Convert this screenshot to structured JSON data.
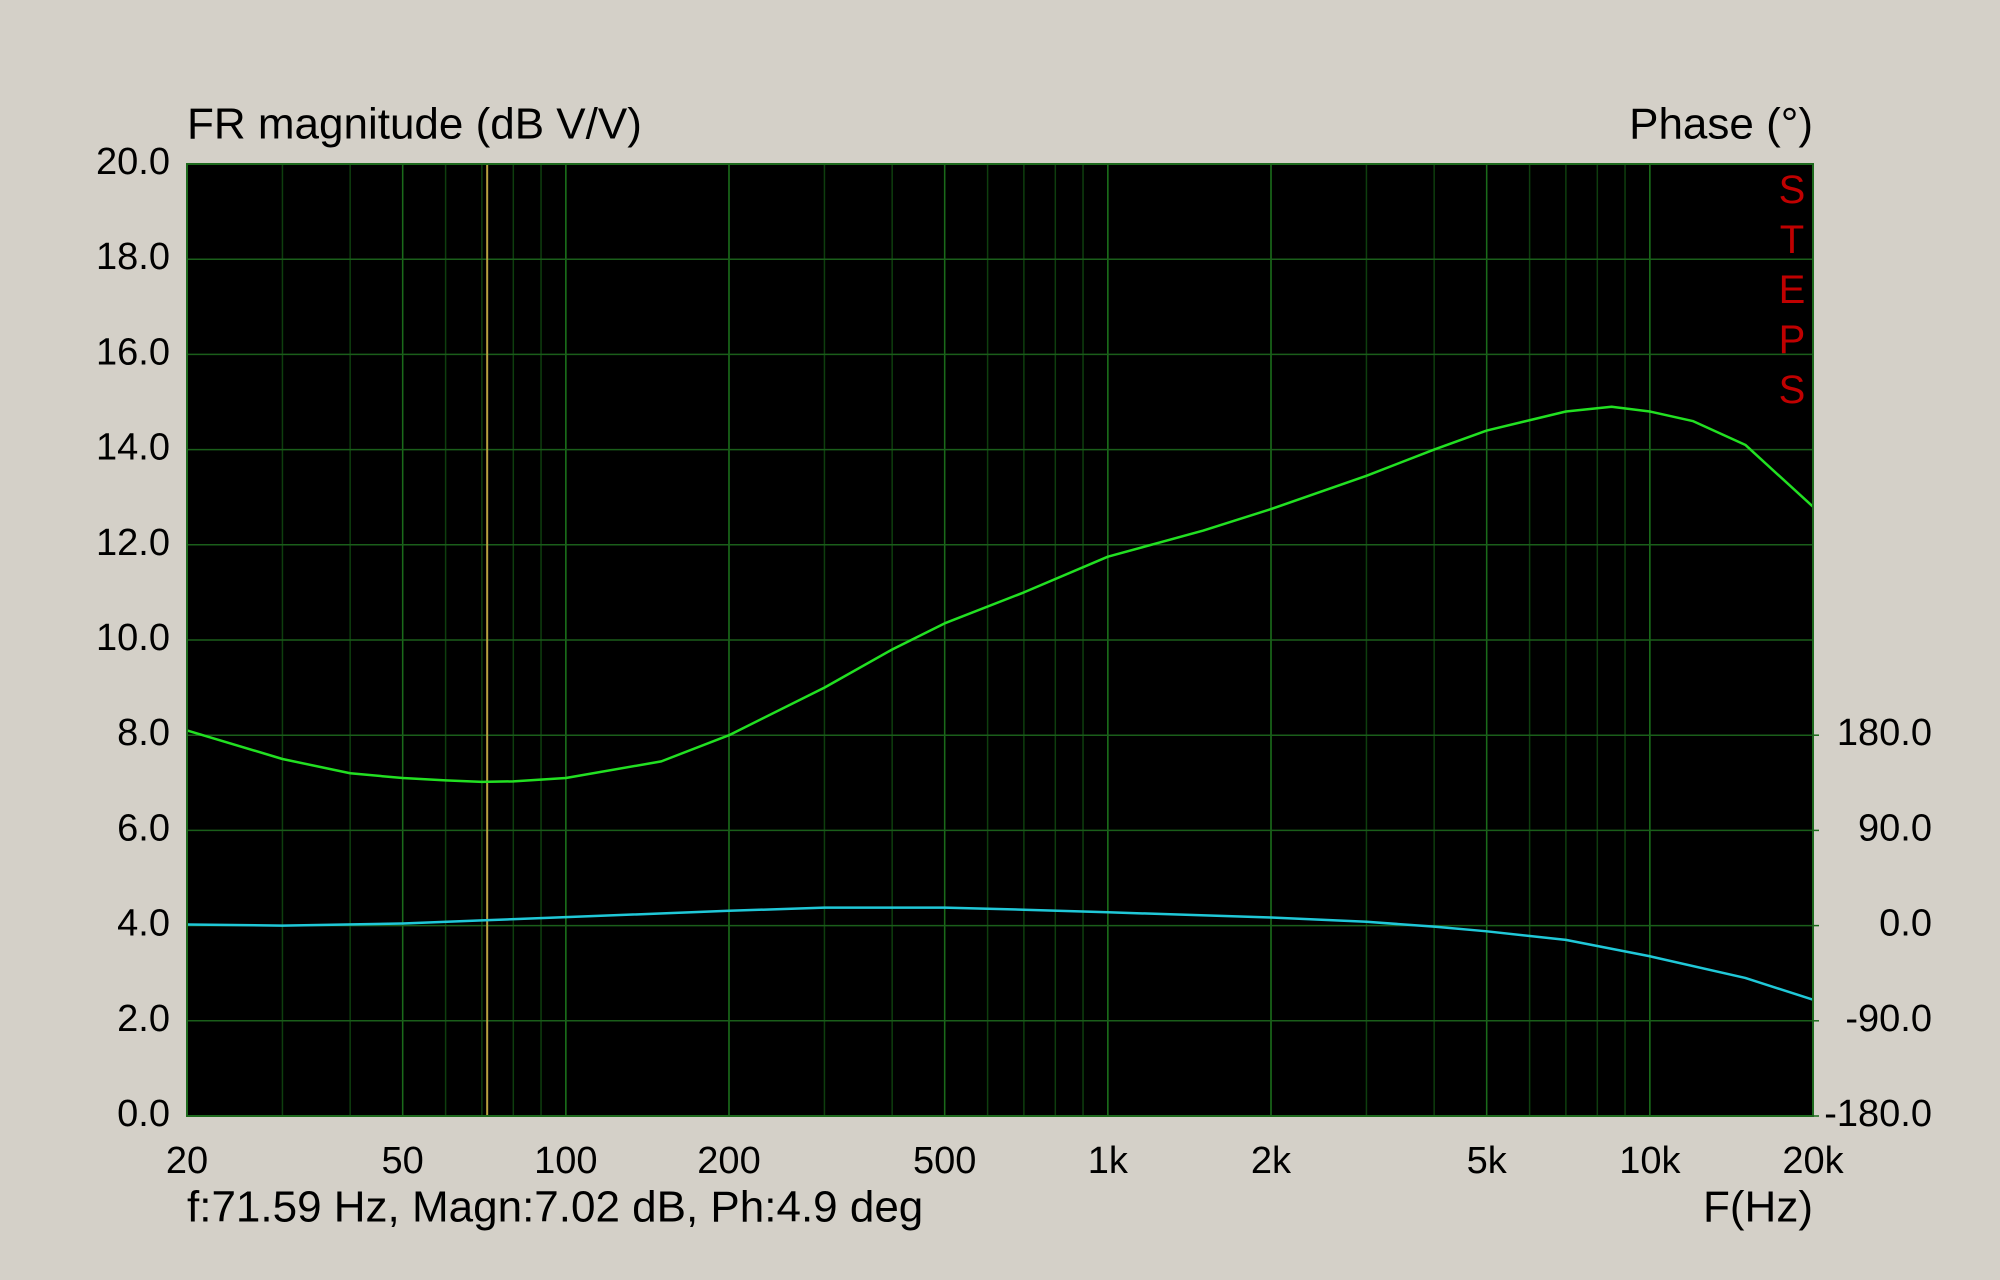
{
  "chart_data": {
    "type": "line",
    "title": "FR magnitude (dB V/V)",
    "y2_title": "Phase (°)",
    "xlabel": "F(Hz)",
    "annotation": "STEPS",
    "log_x": true,
    "grid": true,
    "xlim": [
      20,
      20000
    ],
    "xticks": [
      20,
      50,
      100,
      200,
      500,
      {
        "value": 1000,
        "label": "1k"
      },
      {
        "value": 2000,
        "label": "2k"
      },
      {
        "value": 5000,
        "label": "5k"
      },
      {
        "value": 10000,
        "label": "10k"
      },
      {
        "value": 20000,
        "label": "20k"
      }
    ],
    "ylim": [
      0,
      20
    ],
    "yticks": [
      {
        "value": 0,
        "label": "0.0"
      },
      {
        "value": 2,
        "label": "2.0"
      },
      {
        "value": 4,
        "label": "4.0"
      },
      {
        "value": 6,
        "label": "6.0"
      },
      {
        "value": 8,
        "label": "8.0"
      },
      {
        "value": 10,
        "label": "10.0"
      },
      {
        "value": 12,
        "label": "12.0"
      },
      {
        "value": 14,
        "label": "14.0"
      },
      {
        "value": 16,
        "label": "16.0"
      },
      {
        "value": 18,
        "label": "18.0"
      },
      {
        "value": 20,
        "label": "20.0"
      }
    ],
    "y2lim": [
      -180,
      720
    ],
    "y2ticks": [
      {
        "value": -180,
        "label": "-180.0"
      },
      {
        "value": -90,
        "label": "-90.0"
      },
      {
        "value": 0,
        "label": "0.0"
      },
      {
        "value": 90,
        "label": "90.0"
      },
      {
        "value": 180,
        "label": "180.0"
      }
    ],
    "series": [
      {
        "name": "Magnitude",
        "color": "#22e022",
        "x": [
          20,
          30,
          40,
          50,
          60,
          70,
          80,
          100,
          150,
          200,
          300,
          400,
          500,
          700,
          1000,
          1500,
          2000,
          3000,
          4000,
          5000,
          7000,
          8500,
          10000,
          12000,
          15000,
          20000
        ],
        "values": [
          8.1,
          7.5,
          7.2,
          7.1,
          7.05,
          7.02,
          7.03,
          7.1,
          7.45,
          8.0,
          9.0,
          9.8,
          10.35,
          11.0,
          11.75,
          12.3,
          12.75,
          13.45,
          14.0,
          14.4,
          14.8,
          14.9,
          14.8,
          14.6,
          14.1,
          12.8
        ]
      },
      {
        "name": "Phase",
        "color": "#20c8d8",
        "axis": "y2",
        "x": [
          20,
          30,
          50,
          70,
          100,
          200,
          300,
          500,
          700,
          1000,
          2000,
          3000,
          4000,
          5000,
          7000,
          10000,
          15000,
          20000
        ],
        "values": [
          1,
          0,
          2,
          4.9,
          8,
          14,
          17,
          17,
          15,
          12.6,
          7.6,
          3.6,
          -1,
          -5.4,
          -13.5,
          -29,
          -49.5,
          -70
        ]
      }
    ],
    "cursor": {
      "x": 71.59,
      "color": "#b8a040",
      "text": "f:71.59 Hz, Magn:7.02 dB, Ph:4.9 deg"
    }
  }
}
